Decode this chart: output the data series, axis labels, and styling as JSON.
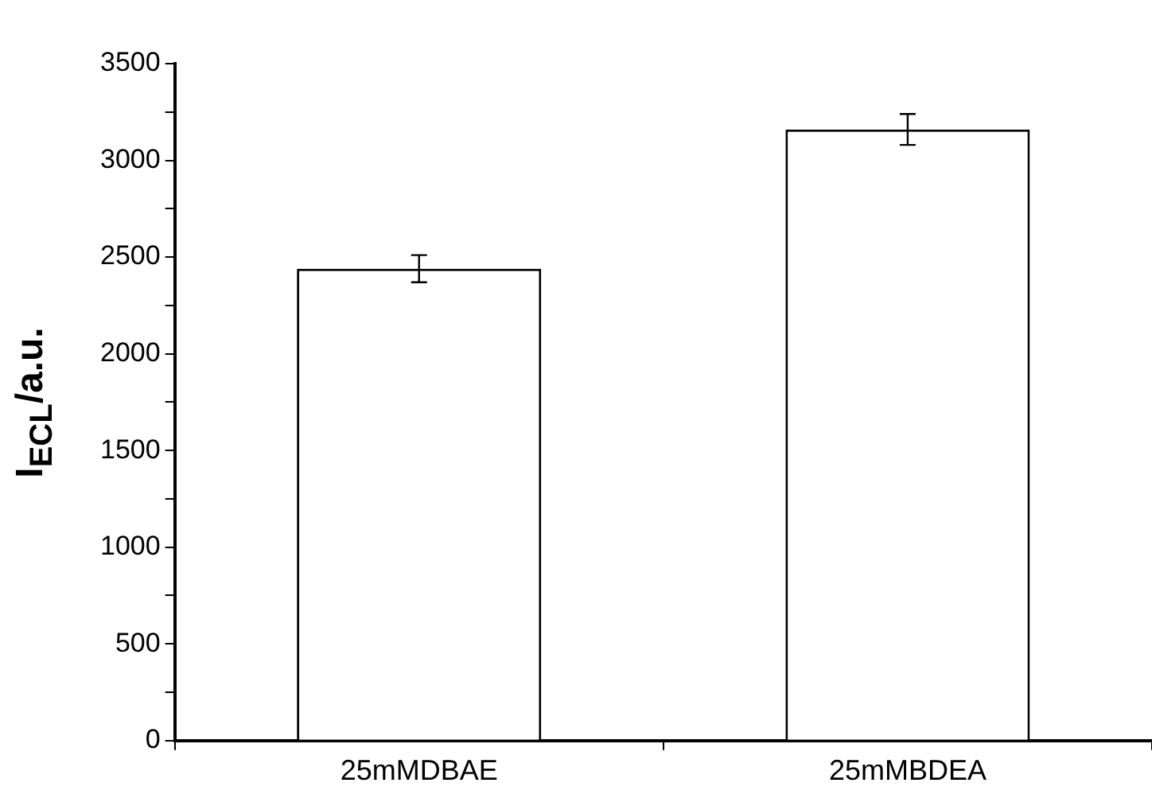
{
  "chart_data": {
    "type": "bar",
    "ylabel": "I$_{ECL}$/a.u.",
    "categories": [
      "25mMDBAE",
      "25mMBDEA"
    ],
    "values": [
      2440,
      3160
    ],
    "errors": [
      70,
      80
    ],
    "color": "#ffffff",
    "ylim": [
      0,
      3500
    ],
    "yticks": [
      0,
      {
        "value": 250,
        "label": null
      },
      500,
      {
        "value": 750,
        "label": null
      },
      1000,
      {
        "value": 1250,
        "label": null
      },
      1500,
      {
        "value": 1750,
        "label": null
      },
      2000,
      {
        "value": 2250,
        "label": null
      },
      2500,
      {
        "value": 2750,
        "label": null
      },
      3000,
      {
        "value": 3250,
        "label": null
      },
      3500
    ],
    "grid": false,
    "legend": false
  }
}
